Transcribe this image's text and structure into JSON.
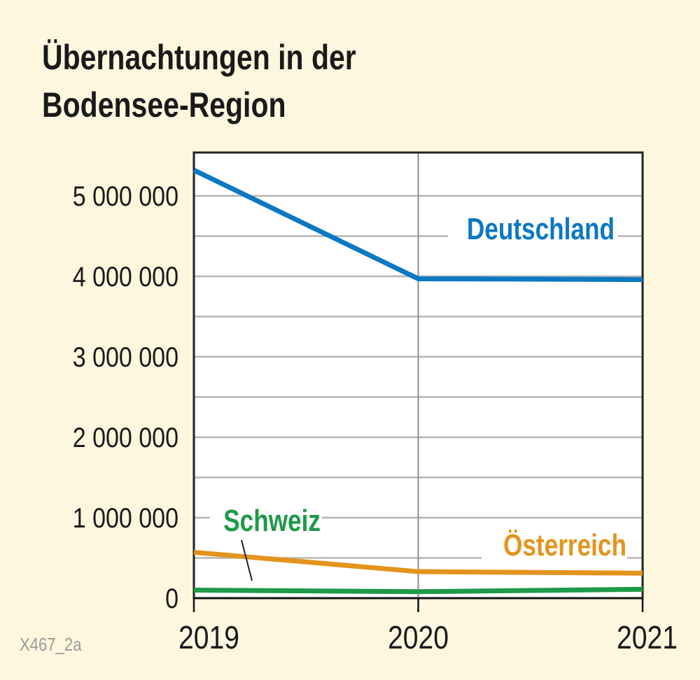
{
  "chart_data": {
    "type": "line",
    "title": [
      "Übernachtungen in der",
      "Bodensee-Region"
    ],
    "xlabel": "",
    "ylabel": "",
    "x": [
      "2019",
      "2020",
      "2021"
    ],
    "ylim": [
      0,
      5500000
    ],
    "yticks": [
      0,
      1000000,
      2000000,
      3000000,
      4000000,
      5000000
    ],
    "ytick_labels": [
      "0",
      "1 000 000",
      "2 000 000",
      "3 000 000",
      "4 000 000",
      "5 000 000"
    ],
    "minor_grid_step": 500000,
    "grid": true,
    "series": [
      {
        "name": "Deutschland",
        "color": "#0b78c2",
        "values": [
          5320000,
          3970000,
          3960000
        ]
      },
      {
        "name": "Österreich",
        "color": "#e3941d",
        "values": [
          570000,
          330000,
          310000
        ]
      },
      {
        "name": "Schweiz",
        "color": "#1e9a48",
        "values": [
          100000,
          80000,
          110000
        ]
      }
    ]
  },
  "figure_code": "X467_2a"
}
